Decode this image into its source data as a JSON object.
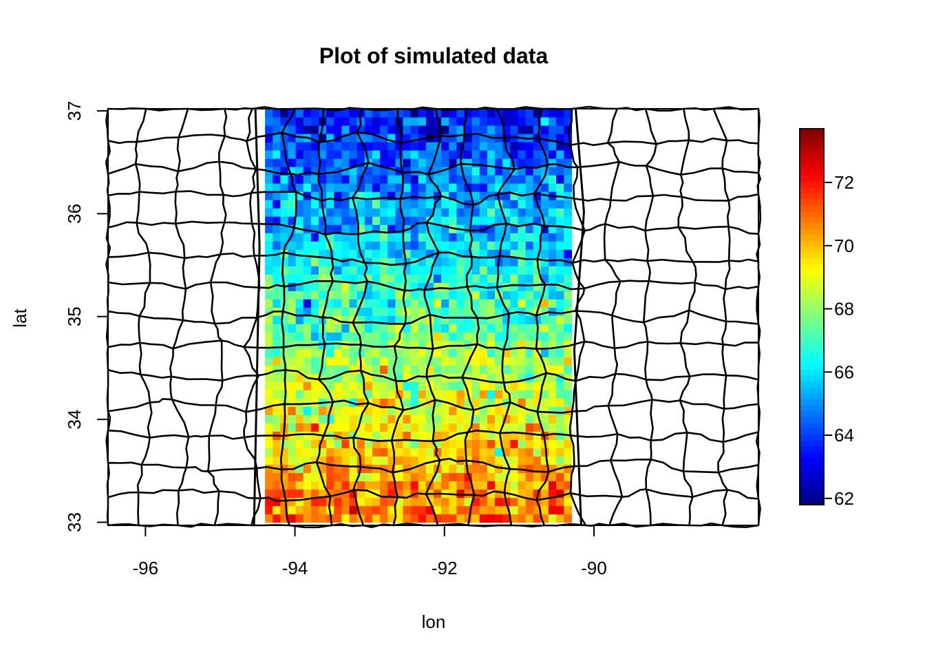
{
  "chart_data": {
    "type": "heatmap",
    "title": "Plot of simulated data",
    "xlabel": "lon",
    "ylabel": "lat",
    "xlim": [
      -96.5,
      -87.8
    ],
    "ylim": [
      32.97,
      37.02
    ],
    "x_ticks": [
      {
        "value": -96,
        "label": "-96"
      },
      {
        "value": -94,
        "label": "-94"
      },
      {
        "value": -92,
        "label": "-92"
      },
      {
        "value": -90,
        "label": "-90"
      }
    ],
    "y_ticks": [
      {
        "value": 33,
        "label": "33"
      },
      {
        "value": 34,
        "label": "34"
      },
      {
        "value": 35,
        "label": "35"
      },
      {
        "value": 36,
        "label": "36"
      },
      {
        "value": 37,
        "label": "37"
      }
    ],
    "grid": {
      "lon_range": [
        -94.4,
        -90.3
      ],
      "lat_range": [
        33.0,
        37.02
      ],
      "n_lon": 40,
      "n_lat": 50,
      "value_at_south": 71.0,
      "value_at_north": 63.4,
      "noise_sd": 0.9
    },
    "colorbar": {
      "range": [
        61.8,
        73.7
      ],
      "palette": "jet",
      "ticks": [
        {
          "value": 62,
          "label": "62"
        },
        {
          "value": 64,
          "label": "64"
        },
        {
          "value": 66,
          "label": "66"
        },
        {
          "value": 68,
          "label": "68"
        },
        {
          "value": 70,
          "label": "70"
        },
        {
          "value": 72,
          "label": "72"
        }
      ]
    },
    "grid_lines": false,
    "legend_placement": "right"
  }
}
